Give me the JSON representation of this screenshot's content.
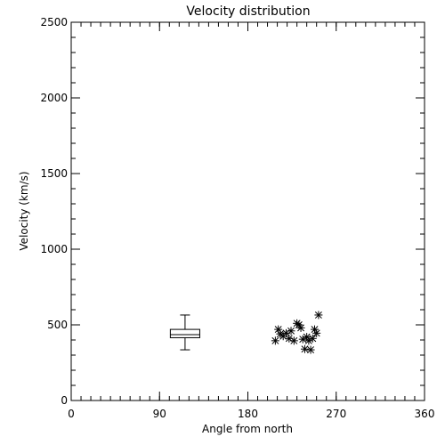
{
  "chart_data": {
    "type": "scatter",
    "title": "Velocity distribution",
    "xlabel": "Angle from north",
    "ylabel": "Velocity (km/s)",
    "xlim": [
      0,
      360
    ],
    "ylim": [
      0,
      2500
    ],
    "x_ticks": [
      0,
      90,
      180,
      270,
      360
    ],
    "x_tick_labels": [
      "0",
      "90",
      "180",
      "270",
      "360"
    ],
    "x_minor_step": 10,
    "y_ticks": [
      0,
      500,
      1000,
      1500,
      2000,
      2500
    ],
    "y_tick_labels": [
      "0",
      "500",
      "1000",
      "1500",
      "2000",
      "2500"
    ],
    "y_minor_step": 100,
    "grid": false,
    "marker": "asterisk",
    "points": [
      {
        "x": 208,
        "y": 395
      },
      {
        "x": 211,
        "y": 470
      },
      {
        "x": 213,
        "y": 440
      },
      {
        "x": 216,
        "y": 425
      },
      {
        "x": 219,
        "y": 445
      },
      {
        "x": 222,
        "y": 410
      },
      {
        "x": 224,
        "y": 460
      },
      {
        "x": 227,
        "y": 395
      },
      {
        "x": 230,
        "y": 510
      },
      {
        "x": 232,
        "y": 500
      },
      {
        "x": 234,
        "y": 480
      },
      {
        "x": 236,
        "y": 405
      },
      {
        "x": 238,
        "y": 340
      },
      {
        "x": 240,
        "y": 420
      },
      {
        "x": 242,
        "y": 395
      },
      {
        "x": 244,
        "y": 335
      },
      {
        "x": 246,
        "y": 410
      },
      {
        "x": 248,
        "y": 470
      },
      {
        "x": 250,
        "y": 445
      },
      {
        "x": 252,
        "y": 565
      }
    ],
    "boxplot": {
      "x": 116,
      "min": 335,
      "q1": 415,
      "median": 435,
      "q3": 470,
      "max": 565,
      "width_x": 30,
      "cap_width_x": 10
    }
  }
}
